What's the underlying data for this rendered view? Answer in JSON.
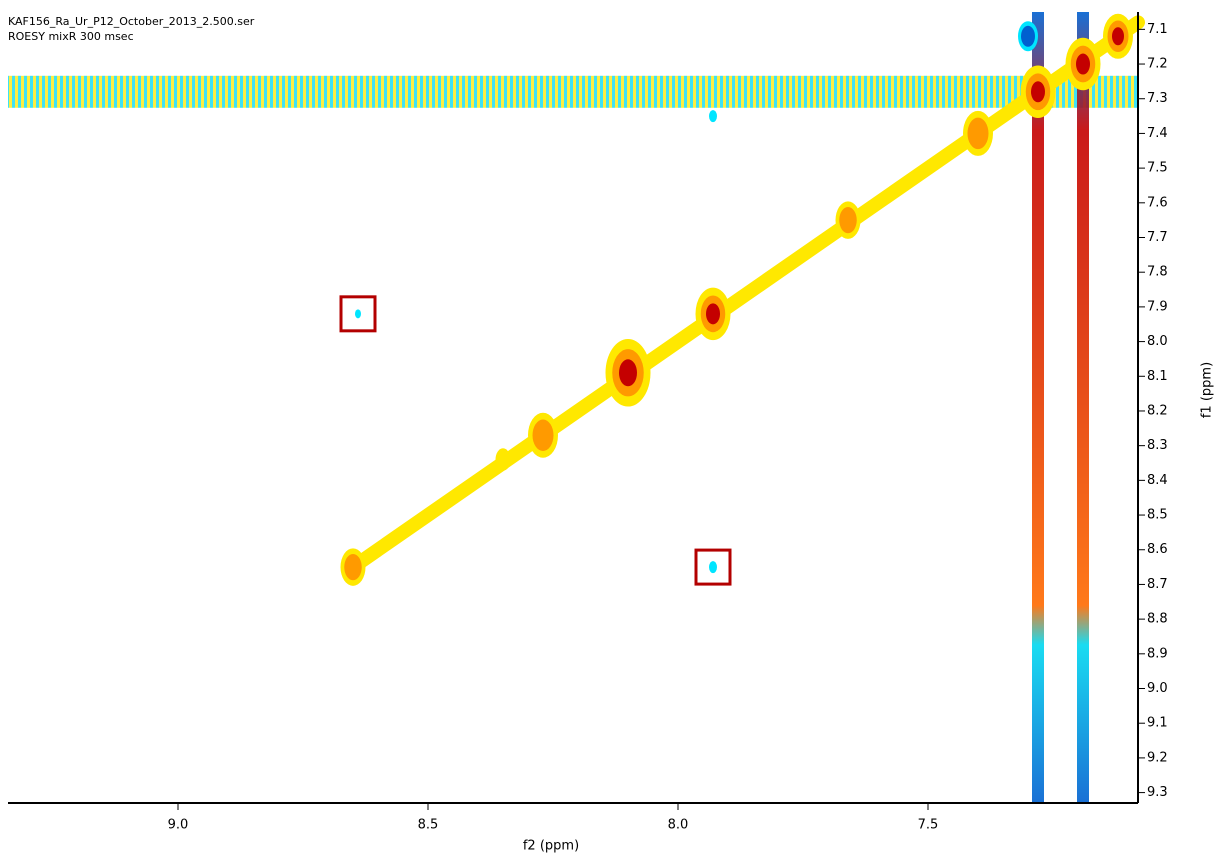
{
  "chart_data": {
    "type": "contour",
    "title": "KAF156_Ra_Ur_P12_October_2013_2.500.ser",
    "subtitle": "ROESY mixR 300 msec",
    "x_label": "f2 (ppm)",
    "y_label": "f1 (ppm)",
    "xlim": [
      9.34,
      7.08
    ],
    "ylim": [
      7.05,
      9.33
    ],
    "xticks": [
      {
        "value": 9,
        "label": "9.0"
      },
      8.5,
      {
        "value": 8,
        "label": "8.0"
      },
      7.5
    ],
    "yticks": [
      7.1,
      7.2,
      7.3,
      7.4,
      7.5,
      7.6,
      7.7,
      7.8,
      7.9,
      {
        "value": 8,
        "label": "8.0"
      },
      8.1,
      8.2,
      8.3,
      8.4,
      8.5,
      8.6,
      8.7,
      8.8,
      8.9,
      {
        "value": 9,
        "label": "9.0"
      },
      9.1,
      9.2,
      9.3
    ],
    "diagonal": true,
    "series": [
      {
        "colors": [
          "#ffe800",
          "#ff9a00",
          "#c40000"
        ],
        "x": [
          8.65,
          8.35,
          8.27,
          8.1,
          7.93,
          7.66,
          7.4,
          7.28,
          7.19,
          7.12
        ],
        "y": [
          8.65,
          8.34,
          8.27,
          8.09,
          7.92,
          7.65,
          7.4,
          7.28,
          7.2,
          7.12
        ],
        "sizes": [
          0.025,
          0.015,
          0.03,
          0.045,
          0.035,
          0.025,
          0.03,
          0.035,
          0.035,
          0.03
        ],
        "levels": [
          2,
          1,
          2,
          3,
          3,
          2,
          2,
          3,
          3,
          3
        ]
      },
      {
        "colors": [
          "#00e5ff",
          "#0060d0"
        ],
        "x": [
          8.64,
          7.93,
          7.93,
          7.3
        ],
        "y": [
          7.92,
          8.65,
          7.35,
          7.12
        ],
        "sizes": [
          0.006,
          0.008,
          0.008,
          0.02
        ],
        "levels": [
          1,
          1,
          1,
          2
        ]
      }
    ],
    "ridges_f1": [
      7.28
    ],
    "ridges_f2": [
      7.28,
      7.19
    ],
    "highlights": {
      "color": "#b30000",
      "x": [
        8.64,
        7.93
      ],
      "y": [
        7.92,
        8.65
      ]
    }
  }
}
